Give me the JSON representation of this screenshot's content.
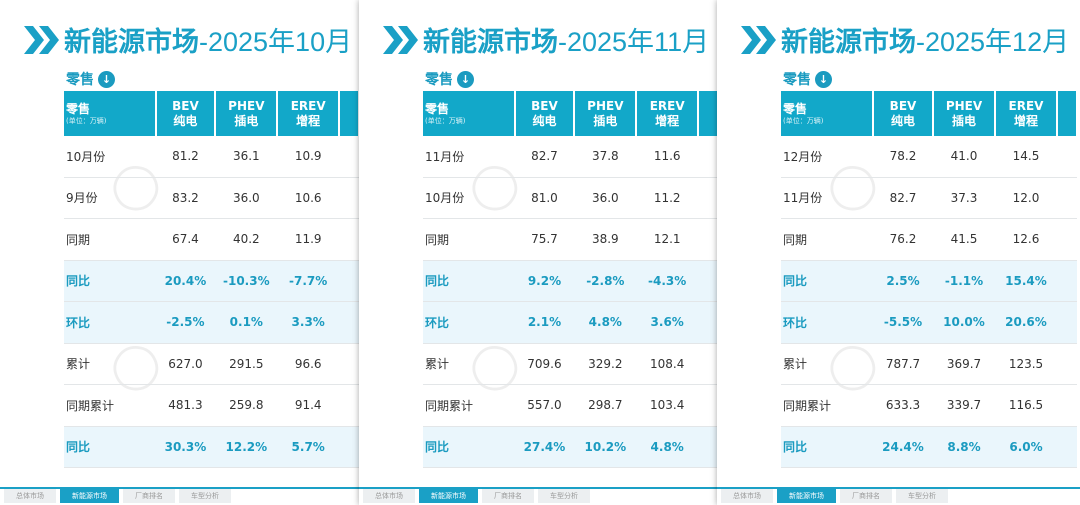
{
  "panels": [
    {
      "title_main": "新能源市场",
      "title_rest": "-2025年10月",
      "subtitle": "零售",
      "header": {
        "label": "零售",
        "unit": "(单位：万辆)",
        "cols": [
          [
            "BEV",
            "纯电"
          ],
          [
            "PHEV",
            "插电"
          ],
          [
            "EREV",
            "增程"
          ]
        ]
      },
      "rows": [
        {
          "label": "10月份",
          "values": [
            "81.2",
            "36.1",
            "10.9"
          ],
          "hl": false
        },
        {
          "label": "9月份",
          "values": [
            "83.2",
            "36.0",
            "10.6"
          ],
          "hl": false
        },
        {
          "label": "同期",
          "values": [
            "67.4",
            "40.2",
            "11.9"
          ],
          "hl": false
        },
        {
          "label": "同比",
          "values": [
            "20.4%",
            "-10.3%",
            "-7.7%"
          ],
          "hl": true
        },
        {
          "label": "环比",
          "values": [
            "-2.5%",
            "0.1%",
            "3.3%"
          ],
          "hl": true
        },
        {
          "label": "累计",
          "values": [
            "627.0",
            "291.5",
            "96.6"
          ],
          "hl": false
        },
        {
          "label": "同期累计",
          "values": [
            "481.3",
            "259.8",
            "91.4"
          ],
          "hl": false
        },
        {
          "label": "同比",
          "values": [
            "30.3%",
            "12.2%",
            "5.7%"
          ],
          "hl": true
        }
      ],
      "tabs": [
        "总体市场",
        "新能源市场",
        "厂商排名",
        "车型分析"
      ],
      "active_tab": 1
    },
    {
      "title_main": "新能源市场",
      "title_rest": "-2025年11月",
      "subtitle": "零售",
      "header": {
        "label": "零售",
        "unit": "(单位：万辆)",
        "cols": [
          [
            "BEV",
            "纯电"
          ],
          [
            "PHEV",
            "插电"
          ],
          [
            "EREV",
            "增程"
          ]
        ]
      },
      "rows": [
        {
          "label": "11月份",
          "values": [
            "82.7",
            "37.8",
            "11.6"
          ],
          "hl": false
        },
        {
          "label": "10月份",
          "values": [
            "81.0",
            "36.0",
            "11.2"
          ],
          "hl": false
        },
        {
          "label": "同期",
          "values": [
            "75.7",
            "38.9",
            "12.1"
          ],
          "hl": false
        },
        {
          "label": "同比",
          "values": [
            "9.2%",
            "-2.8%",
            "-4.3%"
          ],
          "hl": true
        },
        {
          "label": "环比",
          "values": [
            "2.1%",
            "4.8%",
            "3.6%"
          ],
          "hl": true
        },
        {
          "label": "累计",
          "values": [
            "709.6",
            "329.2",
            "108.4"
          ],
          "hl": false
        },
        {
          "label": "同期累计",
          "values": [
            "557.0",
            "298.7",
            "103.4"
          ],
          "hl": false
        },
        {
          "label": "同比",
          "values": [
            "27.4%",
            "10.2%",
            "4.8%"
          ],
          "hl": true
        }
      ],
      "tabs": [
        "总体市场",
        "新能源市场",
        "厂商排名",
        "车型分析"
      ],
      "active_tab": 1
    },
    {
      "title_main": "新能源市场",
      "title_rest": "-2025年12月",
      "subtitle": "零售",
      "header": {
        "label": "零售",
        "unit": "(单位：万辆)",
        "cols": [
          [
            "BEV",
            "纯电"
          ],
          [
            "PHEV",
            "插电"
          ],
          [
            "EREV",
            "增程"
          ]
        ]
      },
      "rows": [
        {
          "label": "12月份",
          "values": [
            "78.2",
            "41.0",
            "14.5"
          ],
          "hl": false
        },
        {
          "label": "11月份",
          "values": [
            "82.7",
            "37.3",
            "12.0"
          ],
          "hl": false
        },
        {
          "label": "同期",
          "values": [
            "76.2",
            "41.5",
            "12.6"
          ],
          "hl": false
        },
        {
          "label": "同比",
          "values": [
            "2.5%",
            "-1.1%",
            "15.4%"
          ],
          "hl": true
        },
        {
          "label": "环比",
          "values": [
            "-5.5%",
            "10.0%",
            "20.6%"
          ],
          "hl": true
        },
        {
          "label": "累计",
          "values": [
            "787.7",
            "369.7",
            "123.5"
          ],
          "hl": false
        },
        {
          "label": "同期累计",
          "values": [
            "633.3",
            "339.7",
            "116.5"
          ],
          "hl": false
        },
        {
          "label": "同比",
          "values": [
            "24.4%",
            "8.8%",
            "6.0%"
          ],
          "hl": true
        }
      ],
      "tabs": [
        "总体市场",
        "新能源市场",
        "厂商排名",
        "车型分析"
      ],
      "active_tab": 1
    }
  ],
  "colors": {
    "accent": "#1aa0c6",
    "header_bg": "#12a8c9",
    "highlight_bg": "#eaf6fc"
  },
  "icons": {
    "title": "double-chevron-right-icon",
    "subtitle": "arrow-down-circle-icon"
  }
}
